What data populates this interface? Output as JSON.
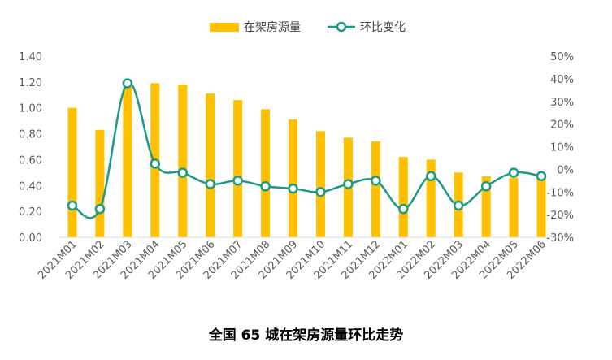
{
  "chart_data": {
    "type": "bar",
    "caption": "全国 65 城在架房源量环比走势",
    "categories": [
      "2021M01",
      "2021M02",
      "2021M03",
      "2021M04",
      "2021M05",
      "2021M06",
      "2021M07",
      "2021M08",
      "2021M09",
      "2021M10",
      "2021M11",
      "2021M12",
      "2022M01",
      "2022M02",
      "2022M03",
      "2022M04",
      "2022M05",
      "2022M06"
    ],
    "series": [
      {
        "name": "在架房源量",
        "kind": "bar",
        "axis": "left",
        "color": "#FFC000",
        "values": [
          1.0,
          0.83,
          1.16,
          1.19,
          1.18,
          1.11,
          1.06,
          0.99,
          0.91,
          0.82,
          0.77,
          0.74,
          0.62,
          0.6,
          0.5,
          0.47,
          0.46,
          0.46
        ]
      },
      {
        "name": "环比变化",
        "kind": "line",
        "axis": "right",
        "color": "#1A9A84",
        "values": [
          -16,
          -17.5,
          38,
          2.5,
          -1.5,
          -6.5,
          -5,
          -7.5,
          -8.5,
          -10,
          -6.5,
          -5,
          -17.5,
          -3,
          -16,
          -7.5,
          -1.5,
          -3
        ]
      }
    ],
    "y_left": {
      "min": 0,
      "max": 1.4,
      "step": 0.2,
      "ticks": [
        "0.00",
        "0.20",
        "0.40",
        "0.60",
        "0.80",
        "1.00",
        "1.20",
        "1.40"
      ]
    },
    "y_right": {
      "min": -30,
      "max": 50,
      "step": 10,
      "ticks": [
        "-30%",
        "-20%",
        "-10%",
        "0%",
        "10%",
        "20%",
        "30%",
        "40%",
        "50%"
      ]
    },
    "legend_position": "top-center",
    "grid": false
  }
}
